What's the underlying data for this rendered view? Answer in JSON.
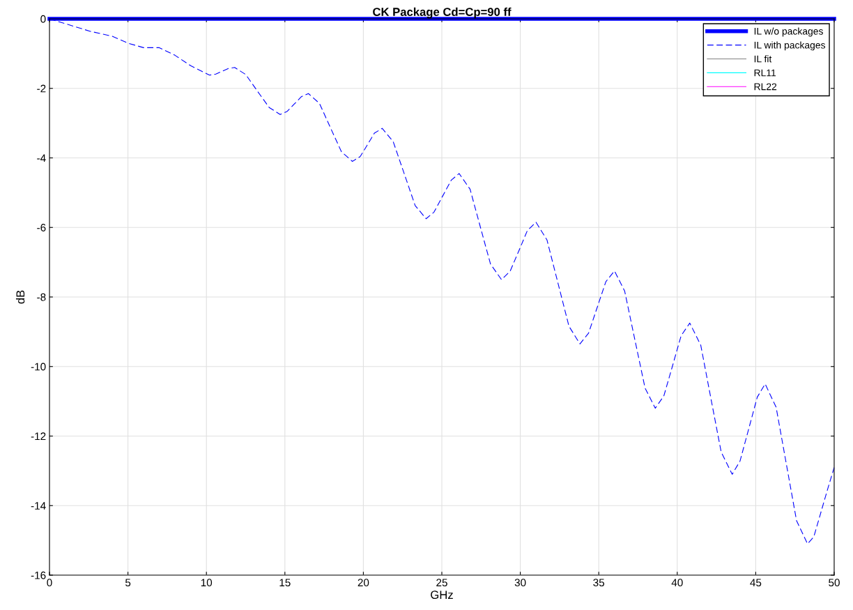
{
  "chart_data": {
    "type": "line",
    "title": "CK Package Cd=Cp=90 ff",
    "xlabel": "GHz",
    "ylabel": "dB",
    "xlim": [
      0,
      50
    ],
    "ylim": [
      -16,
      0
    ],
    "xticks": [
      0,
      5,
      10,
      15,
      20,
      25,
      30,
      35,
      40,
      45,
      50
    ],
    "yticks": [
      -16,
      -14,
      -12,
      -10,
      -8,
      -6,
      -4,
      -2,
      0
    ],
    "grid": true,
    "legend": "top right",
    "marker": "none",
    "series": [
      {
        "name": "IL w/o packages",
        "color": "#0000ff",
        "line_style": "solid",
        "x": [
          0,
          50
        ],
        "values": [
          0,
          0
        ]
      },
      {
        "name": "IL with packages",
        "color": "#0000ff",
        "line_style": "dashed",
        "x": [
          0,
          2.6,
          4,
          5,
          6,
          7,
          8,
          9,
          10.2,
          10.6,
          11.0,
          11.4,
          11.8,
          12.5,
          13.25,
          14.0,
          14.7,
          15.15,
          15.6,
          16.05,
          16.5,
          17.2,
          17.9,
          18.6,
          19.3,
          19.8,
          20.25,
          20.7,
          21.2,
          21.9,
          22.6,
          23.3,
          24,
          24.5,
          25.05,
          25.6,
          26.1,
          26.8,
          27.45,
          28.1,
          28.8,
          29.35,
          29.9,
          30.45,
          31,
          31.7,
          32.4,
          33.1,
          33.8,
          34.35,
          34.9,
          35.45,
          36,
          36.65,
          37.3,
          37.95,
          38.6,
          39.15,
          39.7,
          40.25,
          40.8,
          41.5,
          42.15,
          42.8,
          43.5,
          44.0,
          44.55,
          45.1,
          45.6,
          46.3,
          46.95,
          47.6,
          48.3,
          48.7,
          49.15,
          49.6,
          50
        ],
        "values": [
          0,
          -0.36,
          -0.5,
          -0.7,
          -0.83,
          -0.83,
          -1.05,
          -1.35,
          -1.62,
          -1.59,
          -1.51,
          -1.43,
          -1.4,
          -1.6,
          -2.08,
          -2.55,
          -2.75,
          -2.66,
          -2.45,
          -2.24,
          -2.15,
          -2.43,
          -3.13,
          -3.82,
          -4.1,
          -3.96,
          -3.63,
          -3.29,
          -3.15,
          -3.53,
          -4.45,
          -5.37,
          -5.75,
          -5.56,
          -5.1,
          -4.64,
          -4.45,
          -4.9,
          -5.98,
          -7.05,
          -7.5,
          -7.26,
          -6.68,
          -6.09,
          -5.85,
          -6.36,
          -7.6,
          -8.84,
          -9.35,
          -9.04,
          -8.3,
          -7.56,
          -7.25,
          -7.83,
          -9.23,
          -10.62,
          -11.2,
          -10.84,
          -9.98,
          -9.11,
          -8.75,
          -9.39,
          -10.93,
          -12.46,
          -13.1,
          -12.72,
          -11.8,
          -10.88,
          -10.5,
          -11.17,
          -12.8,
          -14.43,
          -15.1,
          -14.9,
          -14.2,
          -13.5,
          -12.9
        ]
      },
      {
        "name": "IL fit",
        "color": "#808080",
        "line_style": "solid"
      },
      {
        "name": "RL11",
        "color": "#00ffff",
        "line_style": "solid"
      },
      {
        "name": "RL22",
        "color": "#ff00ff",
        "line_style": "solid"
      }
    ]
  }
}
